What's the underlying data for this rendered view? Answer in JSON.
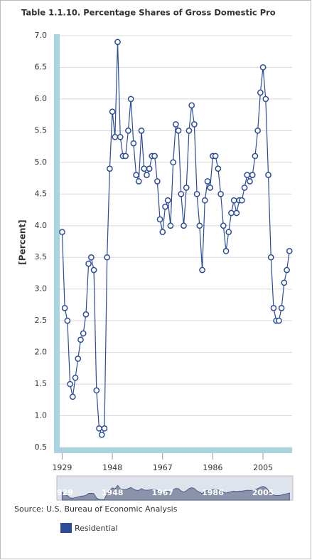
{
  "chart_data": {
    "type": "line",
    "title": "Table 1.1.10. Percentage Shares of Gross Domestic Pro",
    "y_label": "[Percent]",
    "source": "Source: U.S. Bureau of Economic Analysis",
    "x": [
      1929,
      1930,
      1931,
      1932,
      1933,
      1934,
      1935,
      1936,
      1937,
      1938,
      1939,
      1940,
      1941,
      1942,
      1943,
      1944,
      1945,
      1946,
      1947,
      1948,
      1949,
      1950,
      1951,
      1952,
      1953,
      1954,
      1955,
      1956,
      1957,
      1958,
      1959,
      1960,
      1961,
      1962,
      1963,
      1964,
      1965,
      1966,
      1967,
      1968,
      1969,
      1970,
      1971,
      1972,
      1973,
      1974,
      1975,
      1976,
      1977,
      1978,
      1979,
      1980,
      1981,
      1982,
      1983,
      1984,
      1985,
      1986,
      1987,
      1988,
      1989,
      1990,
      1991,
      1992,
      1993,
      1994,
      1995,
      1996,
      1997,
      1998,
      1999,
      2000,
      2001,
      2002,
      2003,
      2004,
      2005,
      2006,
      2007,
      2008,
      2009,
      2010,
      2011,
      2012,
      2013,
      2014,
      2015
    ],
    "series": [
      {
        "name": "Residential",
        "color": "#2b4c9b",
        "values": [
          3.9,
          2.7,
          2.5,
          1.5,
          1.3,
          1.6,
          1.9,
          2.2,
          2.3,
          2.6,
          3.4,
          3.5,
          3.3,
          1.4,
          0.8,
          0.7,
          0.8,
          3.5,
          4.9,
          5.8,
          5.4,
          6.9,
          5.4,
          5.1,
          5.1,
          5.5,
          6.0,
          5.3,
          4.8,
          4.7,
          5.5,
          4.9,
          4.8,
          4.9,
          5.1,
          5.1,
          4.7,
          4.1,
          3.9,
          4.3,
          4.4,
          4.0,
          5.0,
          5.6,
          5.5,
          4.5,
          4.0,
          4.6,
          5.5,
          5.9,
          5.6,
          4.5,
          4.0,
          3.3,
          4.4,
          4.7,
          4.6,
          5.1,
          5.1,
          4.9,
          4.5,
          4.0,
          3.6,
          3.9,
          4.2,
          4.4,
          4.2,
          4.4,
          4.4,
          4.6,
          4.8,
          4.7,
          4.8,
          5.1,
          5.5,
          6.1,
          6.5,
          6.0,
          4.8,
          3.5,
          2.7,
          2.5,
          2.5,
          2.7,
          3.1,
          3.3,
          3.6
        ]
      }
    ],
    "xlim": [
      1927,
      2016
    ],
    "xticks": [
      1929,
      1948,
      1967,
      1986,
      2005
    ],
    "ylim": [
      0.5,
      7.0
    ],
    "yticks": [
      0.5,
      {
        "value": 1.0,
        "label": "1.0"
      },
      1.5,
      {
        "value": 2.0,
        "label": "2.0"
      },
      2.5,
      {
        "value": 3.0,
        "label": "3.0"
      },
      3.5,
      {
        "value": 4.0,
        "label": "4.0"
      },
      4.5,
      {
        "value": 5.0,
        "label": "5.0"
      },
      5.5,
      {
        "value": 6.0,
        "label": "6.0"
      },
      6.5,
      {
        "value": 7.0,
        "label": "7.0"
      }
    ],
    "grid": true
  }
}
